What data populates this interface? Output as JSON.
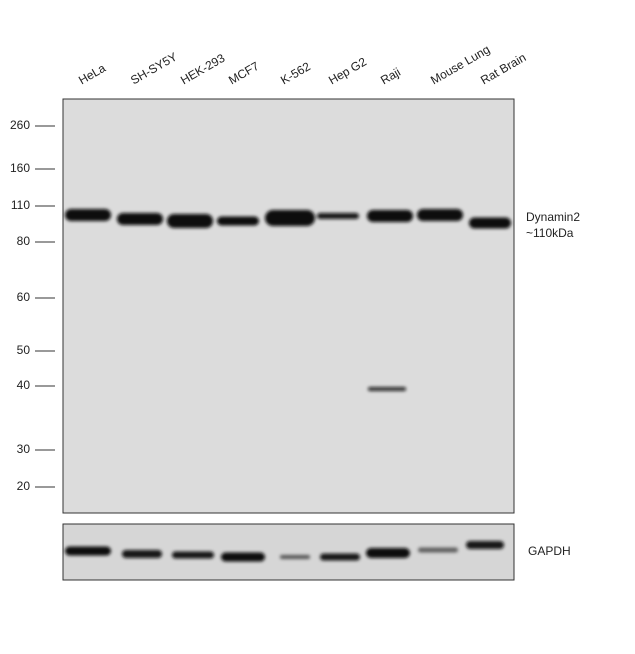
{
  "lanes": [
    "HeLa",
    "SH-SY5Y",
    "HEK-293",
    "MCF7",
    "K-562",
    "Hep G2",
    "Raji",
    "Mouse Lung",
    "Rat Brain"
  ],
  "markers": [
    "260",
    "160",
    "110",
    "80",
    "60",
    "50",
    "40",
    "30",
    "20"
  ],
  "targets": [
    {
      "name": "Dynamin2",
      "size": "~110kDa"
    },
    {
      "name": "GAPDH"
    }
  ]
}
